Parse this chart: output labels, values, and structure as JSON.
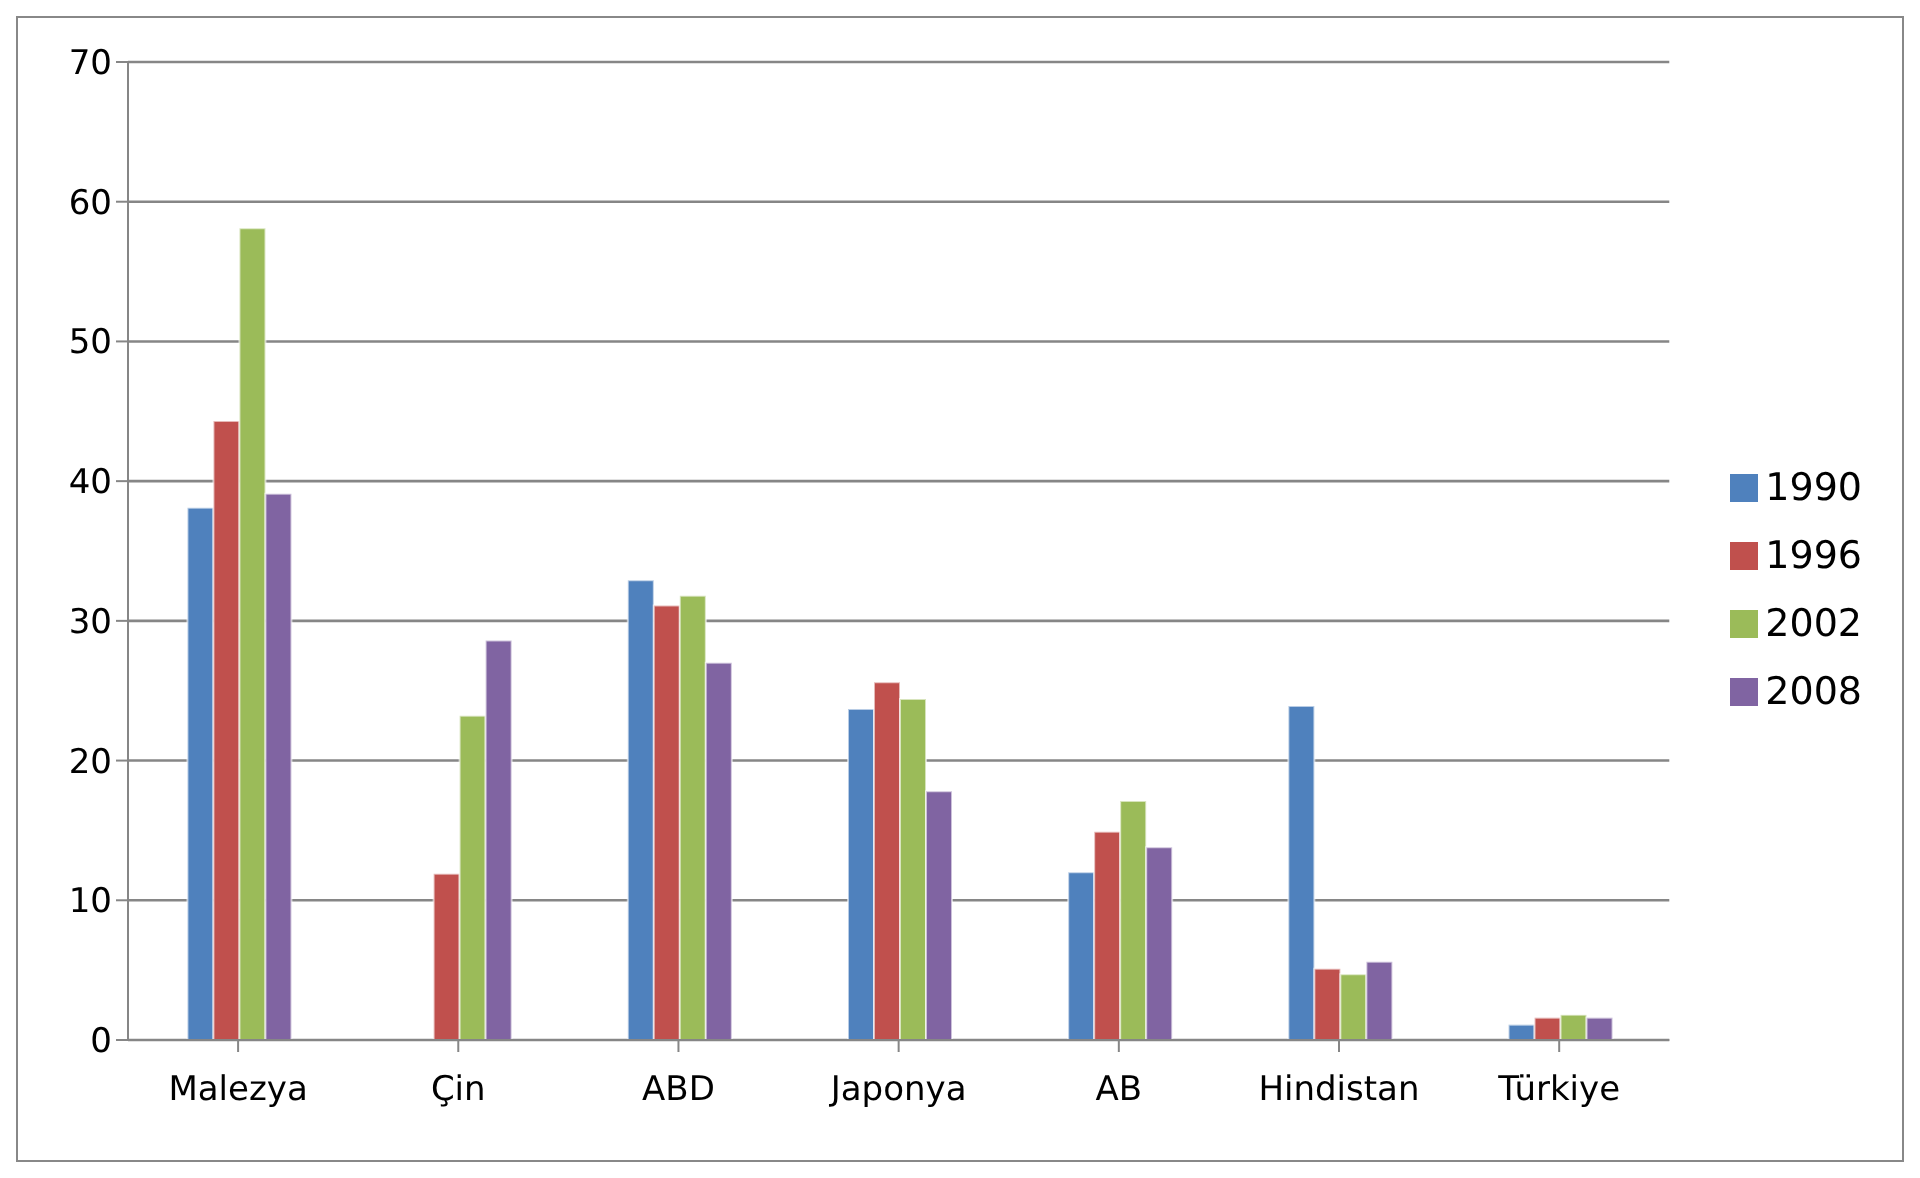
{
  "chart_data": {
    "type": "bar",
    "categories": [
      "Malezya",
      "Çin",
      "ABD",
      "Japonya",
      "AB",
      "Hindistan",
      "Türkiye"
    ],
    "series": [
      {
        "name": "1990",
        "color": "#4f81bd",
        "values": [
          38.1,
          null,
          32.9,
          23.7,
          12.0,
          23.9,
          1.1
        ]
      },
      {
        "name": "1996",
        "color": "#c0504d",
        "values": [
          44.3,
          11.9,
          31.1,
          25.6,
          14.9,
          5.1,
          1.6
        ]
      },
      {
        "name": "2002",
        "color": "#9bbb59",
        "values": [
          58.1,
          23.2,
          31.8,
          24.4,
          17.1,
          4.7,
          1.8
        ]
      },
      {
        "name": "2008",
        "color": "#8064a2",
        "values": [
          39.1,
          28.6,
          27.0,
          17.8,
          13.8,
          5.6,
          1.6
        ]
      }
    ],
    "ylim": [
      0,
      70
    ],
    "yticks": [
      0,
      10,
      20,
      30,
      40,
      50,
      60,
      70
    ],
    "grid": "y",
    "legend": "right"
  }
}
